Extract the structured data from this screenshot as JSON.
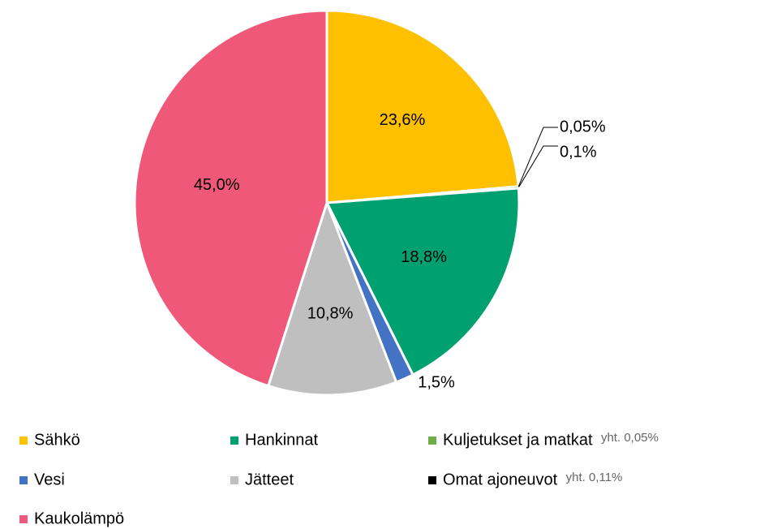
{
  "chart_data": {
    "type": "pie",
    "categories": [
      "Sähkö",
      "Kuljetukset ja matkat",
      "Omat ajoneuvot",
      "Hankinnat",
      "Vesi",
      "Jätteet",
      "Kaukolämpö"
    ],
    "values": [
      23.6,
      0.05,
      0.1,
      18.8,
      1.5,
      10.8,
      45.0
    ],
    "value_labels": [
      "23,6%",
      "0,05%",
      "0,1%",
      "18,8%",
      "1,5%",
      "10,8%",
      "45,0%"
    ],
    "colors": [
      "#FFC000",
      "#70AD47",
      "#000000",
      "#00A070",
      "#4472C4",
      "#BFBFBF",
      "#F0587A"
    ],
    "notes": [
      {
        "category": "Kuljetukset ja matkat",
        "text": "yht. 0,05%"
      },
      {
        "category": "Omat ajoneuvot",
        "text": "yht. 0,11%"
      }
    ]
  }
}
